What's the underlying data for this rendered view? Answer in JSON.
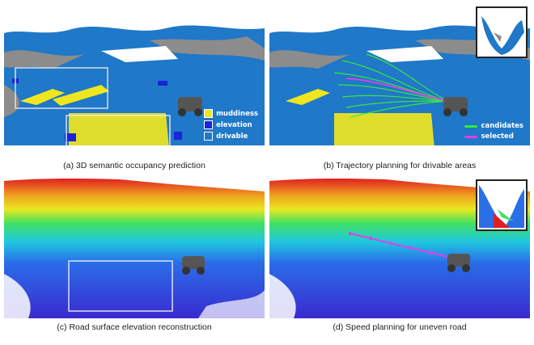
{
  "figure": {
    "panels": [
      {
        "id": "a",
        "caption": "(a) 3D semantic occupancy prediction"
      },
      {
        "id": "b",
        "caption": "(b) Trajectory planning for drivable areas"
      },
      {
        "id": "c",
        "caption": "(c) Road surface elevation reconstruction"
      },
      {
        "id": "d",
        "caption": "(d) Speed planning for uneven road"
      }
    ],
    "legend_a": [
      {
        "label": "muddiness",
        "color": "#f0e61e"
      },
      {
        "label": "elevation",
        "color": "#1a24d9"
      },
      {
        "label": "drivable",
        "color": "#1f78c8"
      }
    ],
    "legend_b": [
      {
        "label": "candidates",
        "color": "#39e83c"
      },
      {
        "label": "selected",
        "color": "#e040e8"
      }
    ],
    "colors": {
      "drivable": "#1f78c8",
      "muddiness": "#f0e61e",
      "elevation": "#1a24d9",
      "unknown": "#8c8c8c",
      "box": "#e8e8e8"
    }
  }
}
